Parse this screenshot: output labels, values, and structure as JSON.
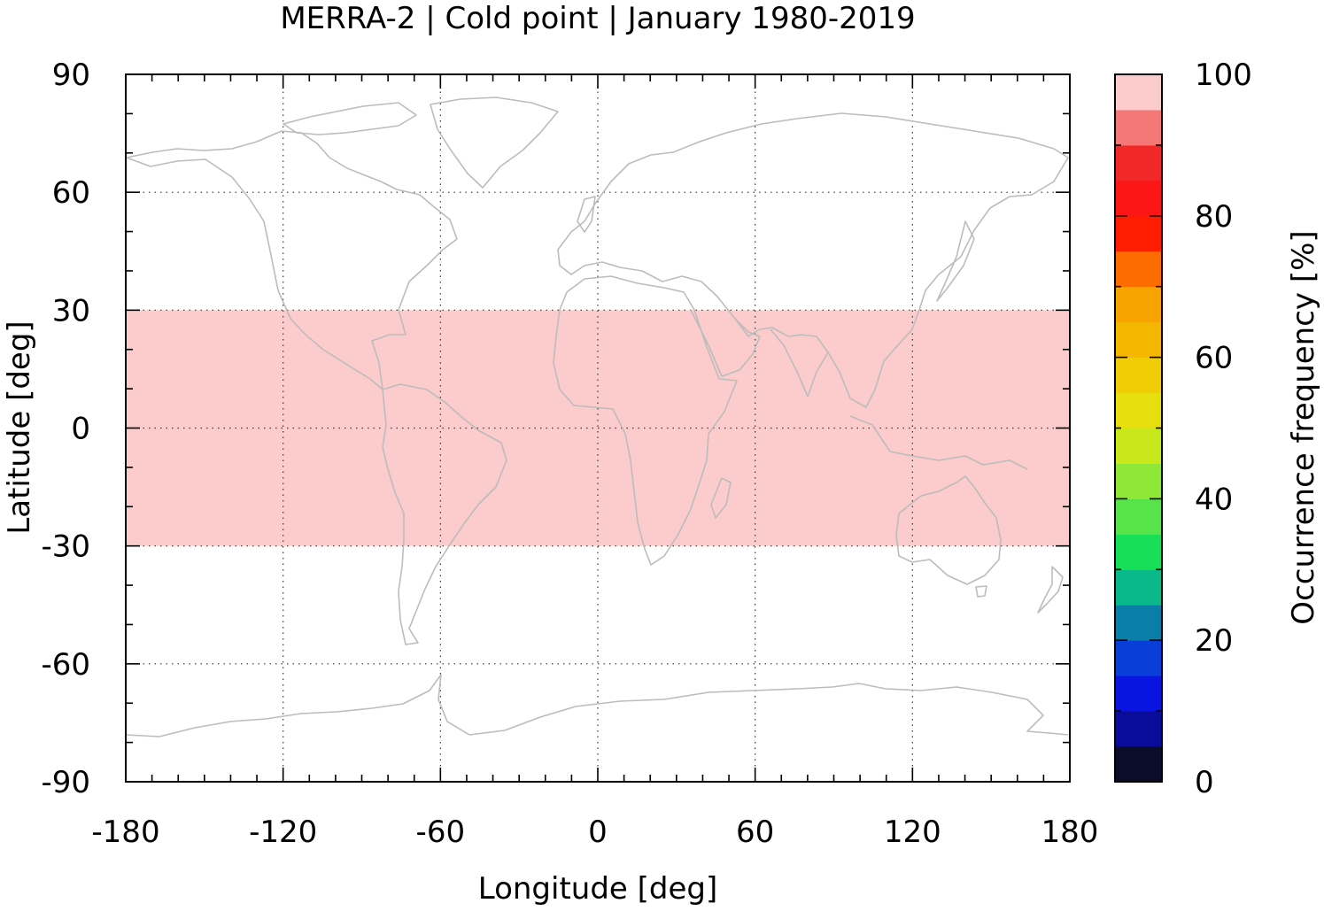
{
  "chart_data": {
    "type": "heatmap",
    "title": "MERRA-2 | Cold point | January 1980-2019",
    "xlabel": "Longitude [deg]",
    "ylabel": "Latitude [deg]",
    "xlim": [
      -180,
      180
    ],
    "ylim": [
      -90,
      90
    ],
    "xticks": [
      -180,
      -120,
      -60,
      0,
      60,
      120,
      180
    ],
    "yticks": [
      90,
      60,
      30,
      0,
      -30,
      -60,
      -90
    ],
    "grid": true,
    "background_map": "coastlines",
    "coastline_color": "#bcbcbc",
    "regions": [
      {
        "lon": [
          -180,
          180
        ],
        "lat": [
          -30,
          30
        ],
        "value": 100,
        "color": "#fccbcb"
      }
    ],
    "colorbar": {
      "label": "Occurrence frequency [%]",
      "range": [
        0,
        100
      ],
      "ticks": [
        0,
        20,
        40,
        60,
        80,
        100
      ],
      "colors": [
        "#0b0b2a",
        "#080c98",
        "#0a14e0",
        "#0a3ed8",
        "#0b7ea8",
        "#09b98a",
        "#17e058",
        "#57e44a",
        "#8fe838",
        "#c9e81b",
        "#e6df0d",
        "#efcc05",
        "#f4b700",
        "#f8a300",
        "#fc6c00",
        "#ff1c00",
        "#fc1616",
        "#f02828",
        "#f57878",
        "#fccbcb"
      ]
    }
  }
}
